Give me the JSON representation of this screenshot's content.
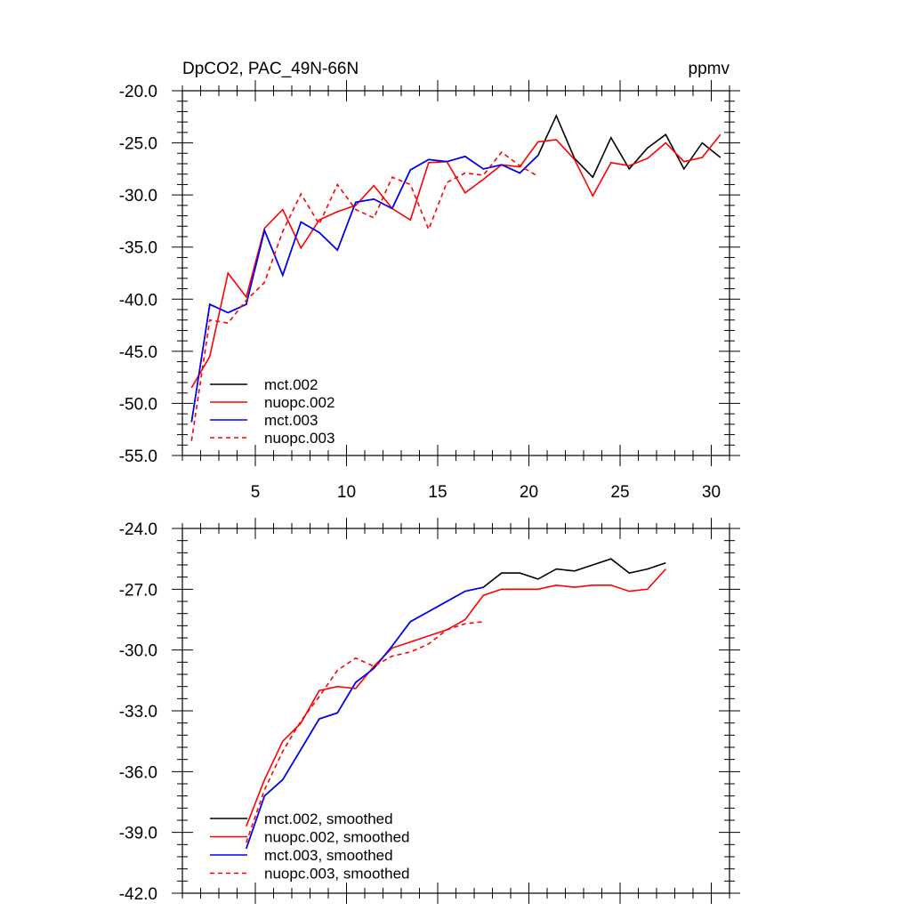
{
  "chart_data": [
    {
      "type": "line",
      "title": "DpCO2, PAC_49N-66N",
      "units": "ppmv",
      "xlim": [
        1,
        31
      ],
      "ylim": [
        -55.0,
        -20.0
      ],
      "xticks": [
        5,
        10,
        15,
        20,
        25,
        30
      ],
      "xtick_labels": [
        "5",
        "10",
        "15",
        "20",
        "25",
        "30"
      ],
      "yticks": [
        -55.0,
        -50.0,
        -45.0,
        -40.0,
        -35.0,
        -30.0,
        -25.0,
        -20.0
      ],
      "ytick_labels": [
        "-55.0",
        "-50.0",
        "-45.0",
        "-40.0",
        "-35.0",
        "-30.0",
        "-25.0",
        "-20.0"
      ],
      "legend_position": "bottom-left",
      "series": [
        {
          "name": "mct.002",
          "color": "#000000",
          "dash": "solid",
          "x": [
            1.5,
            2.5,
            3.5,
            4.5,
            5.5,
            6.5,
            7.5,
            8.5,
            9.5,
            10.5,
            11.5,
            12.5,
            13.5,
            14.5,
            15.5,
            16.5,
            17.5,
            18.5,
            19.5,
            20.5,
            21.5,
            22.5,
            23.5,
            24.5,
            25.5,
            26.5,
            27.5,
            28.5,
            29.5,
            30.5
          ],
          "values": [
            -51.8,
            -40.5,
            -41.3,
            -40.5,
            -33.4,
            -37.7,
            -32.6,
            -33.6,
            -35.3,
            -30.7,
            -30.4,
            -31.3,
            -27.6,
            -26.6,
            -26.8,
            -26.3,
            -27.5,
            -27.1,
            -27.9,
            -26.2,
            -22.4,
            -26.5,
            -28.3,
            -24.5,
            -27.5,
            -25.5,
            -24.2,
            -27.5,
            -25.0,
            -26.4
          ]
        },
        {
          "name": "nuopc.002",
          "color": "#ff0000",
          "dash": "solid",
          "x": [
            1.5,
            2.5,
            3.5,
            4.5,
            5.5,
            6.5,
            7.5,
            8.5,
            9.5,
            10.5,
            11.5,
            12.5,
            13.5,
            14.5,
            15.5,
            16.5,
            17.5,
            18.5,
            19.5,
            20.5,
            21.5,
            22.5,
            23.5,
            24.5,
            25.5,
            26.5,
            27.5,
            28.5,
            29.5,
            30.5
          ],
          "values": [
            -48.5,
            -45.5,
            -37.5,
            -39.8,
            -33.2,
            -31.4,
            -35.1,
            -32.4,
            -31.6,
            -31.0,
            -29.1,
            -31.3,
            -32.4,
            -26.9,
            -26.8,
            -29.8,
            -28.5,
            -27.1,
            -27.3,
            -24.9,
            -24.7,
            -26.6,
            -30.1,
            -26.9,
            -27.2,
            -26.5,
            -25.0,
            -26.8,
            -26.4,
            -24.2
          ]
        },
        {
          "name": "mct.003",
          "color": "#0000ff",
          "dash": "solid",
          "x": [
            1.5,
            2.5,
            3.5,
            4.5,
            5.5,
            6.5,
            7.5,
            8.5,
            9.5,
            10.5,
            11.5,
            12.5,
            13.5,
            14.5,
            15.5,
            16.5,
            17.5,
            18.5,
            19.5,
            20.5
          ],
          "values": [
            -51.8,
            -40.5,
            -41.3,
            -40.5,
            -33.4,
            -37.7,
            -32.6,
            -33.6,
            -35.3,
            -30.7,
            -30.4,
            -31.3,
            -27.6,
            -26.6,
            -26.8,
            -26.3,
            -27.5,
            -27.1,
            -27.9,
            -26.2
          ]
        },
        {
          "name": "nuopc.003",
          "color": "#ff0000",
          "dash": "dashed",
          "x": [
            1.5,
            2.5,
            3.5,
            4.5,
            5.5,
            6.5,
            7.5,
            8.5,
            9.5,
            10.5,
            11.5,
            12.5,
            13.5,
            14.5,
            15.5,
            16.5,
            17.5,
            18.5,
            19.5,
            20.5
          ],
          "values": [
            -53.6,
            -42.0,
            -42.3,
            -40.1,
            -38.4,
            -33.5,
            -29.9,
            -32.8,
            -29.0,
            -31.4,
            -32.2,
            -28.3,
            -29.0,
            -33.3,
            -28.8,
            -27.9,
            -28.1,
            -25.9,
            -27.2,
            -28.2
          ]
        }
      ]
    },
    {
      "type": "line",
      "title": "",
      "xlim": [
        1,
        31
      ],
      "ylim": [
        -42.0,
        -24.0
      ],
      "xticks": [
        5,
        10,
        15,
        20,
        25,
        30
      ],
      "xtick_labels": [],
      "yticks": [
        -42.0,
        -39.0,
        -36.0,
        -33.0,
        -30.0,
        -27.0,
        -24.0
      ],
      "ytick_labels": [
        "-42.0",
        "-39.0",
        "-36.0",
        "-33.0",
        "-30.0",
        "-27.0",
        "-24.0"
      ],
      "legend_position": "bottom-left",
      "series": [
        {
          "name": "mct.002, smoothed",
          "color": "#000000",
          "dash": "solid",
          "x": [
            4.5,
            5.5,
            6.5,
            7.5,
            8.5,
            9.5,
            10.5,
            11.5,
            12.5,
            13.5,
            14.5,
            15.5,
            16.5,
            17.5,
            18.5,
            19.5,
            20.5,
            21.5,
            22.5,
            23.5,
            24.5,
            25.5,
            26.5,
            27.5
          ],
          "values": [
            -39.8,
            -37.2,
            -36.4,
            -34.9,
            -33.4,
            -33.1,
            -31.6,
            -30.9,
            -29.8,
            -28.6,
            -28.1,
            -27.6,
            -27.1,
            -26.9,
            -26.2,
            -26.2,
            -26.5,
            -26.0,
            -26.1,
            -25.8,
            -25.5,
            -26.2,
            -26.0,
            -25.7
          ]
        },
        {
          "name": "nuopc.002, smoothed",
          "color": "#ff0000",
          "dash": "solid",
          "x": [
            4.5,
            5.5,
            6.5,
            7.5,
            8.5,
            9.5,
            10.5,
            11.5,
            12.5,
            13.5,
            14.5,
            15.5,
            16.5,
            17.5,
            18.5,
            19.5,
            20.5,
            21.5,
            22.5,
            23.5,
            24.5,
            25.5,
            26.5,
            27.5
          ],
          "values": [
            -38.7,
            -36.4,
            -34.5,
            -33.6,
            -32.0,
            -31.8,
            -31.9,
            -30.8,
            -29.9,
            -29.6,
            -29.3,
            -29.0,
            -28.5,
            -27.3,
            -27.0,
            -27.0,
            -27.0,
            -26.8,
            -26.9,
            -26.8,
            -26.8,
            -27.1,
            -27.0,
            -26.0
          ]
        },
        {
          "name": "mct.003, smoothed",
          "color": "#0000ff",
          "dash": "solid",
          "x": [
            4.5,
            5.5,
            6.5,
            7.5,
            8.5,
            9.5,
            10.5,
            11.5,
            12.5,
            13.5,
            14.5,
            15.5,
            16.5,
            17.5
          ],
          "values": [
            -39.8,
            -37.2,
            -36.4,
            -34.9,
            -33.4,
            -33.1,
            -31.6,
            -30.9,
            -29.8,
            -28.6,
            -28.1,
            -27.6,
            -27.1,
            -26.9
          ]
        },
        {
          "name": "nuopc.003, smoothed",
          "color": "#ff0000",
          "dash": "dashed",
          "x": [
            4.5,
            5.5,
            6.5,
            7.5,
            8.5,
            9.5,
            10.5,
            11.5,
            12.5,
            13.5,
            14.5,
            15.5,
            16.5,
            17.5
          ],
          "values": [
            -39.5,
            -36.9,
            -35.0,
            -33.5,
            -32.3,
            -31.0,
            -30.4,
            -30.8,
            -30.3,
            -30.1,
            -29.7,
            -29.0,
            -28.7,
            -28.6
          ]
        }
      ]
    }
  ]
}
